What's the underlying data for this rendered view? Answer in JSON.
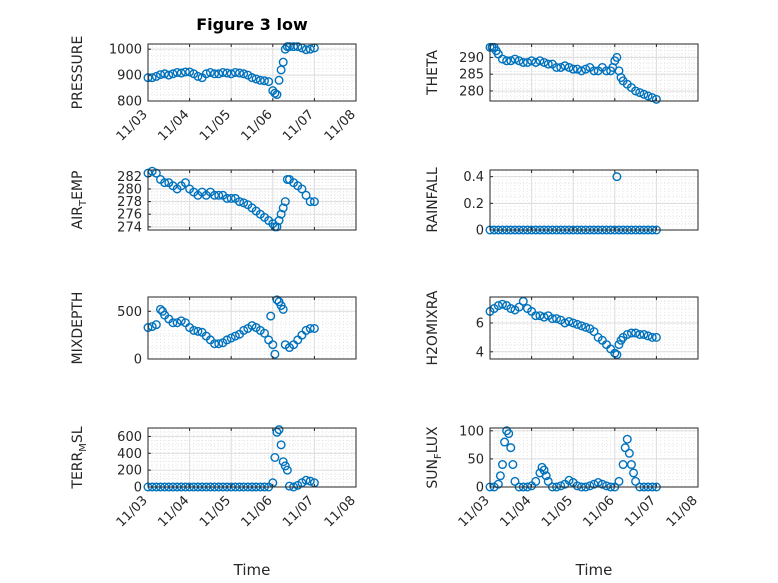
{
  "figure": {
    "title": "Figure 3 low",
    "xlabel": "Time"
  },
  "chart_data": [
    {
      "type": "scatter",
      "ylabel": "PRESSURE",
      "title": "Figure 3 low",
      "xlim": [
        0,
        5
      ],
      "ylim": [
        800,
        1020
      ],
      "yticks": [
        800,
        900,
        1000
      ],
      "xticks": [
        "11/03",
        "11/04",
        "11/05",
        "11/06",
        "11/07",
        "11/08"
      ],
      "series": [
        {
          "x": [
            0.0,
            0.1,
            0.2,
            0.3,
            0.4,
            0.5,
            0.6,
            0.7,
            0.8,
            0.9,
            1.0,
            1.1,
            1.2,
            1.3,
            1.4,
            1.5,
            1.6,
            1.7,
            1.8,
            1.9,
            2.0,
            2.1,
            2.2,
            2.3,
            2.4,
            2.5,
            2.6,
            2.7,
            2.8,
            2.9,
            3.0,
            3.05,
            3.1,
            3.15,
            3.2,
            3.25,
            3.3,
            3.35,
            3.4,
            3.5,
            3.6,
            3.7,
            3.8,
            3.9,
            4.0
          ],
          "y": [
            890,
            890,
            895,
            902,
            905,
            900,
            905,
            910,
            908,
            912,
            912,
            905,
            895,
            890,
            905,
            910,
            905,
            905,
            910,
            908,
            905,
            910,
            908,
            905,
            900,
            890,
            885,
            880,
            878,
            875,
            840,
            830,
            825,
            880,
            920,
            950,
            1000,
            1010,
            1010,
            1010,
            1010,
            1005,
            998,
            1000,
            1005
          ]
        }
      ]
    },
    {
      "type": "scatter",
      "ylabel": "THETA",
      "xlim": [
        0,
        5
      ],
      "ylim": [
        277,
        294
      ],
      "yticks": [
        280,
        285,
        290
      ],
      "series": [
        {
          "x": [
            0.0,
            0.05,
            0.1,
            0.15,
            0.2,
            0.3,
            0.4,
            0.5,
            0.6,
            0.7,
            0.8,
            0.9,
            1.0,
            1.1,
            1.2,
            1.3,
            1.4,
            1.5,
            1.6,
            1.7,
            1.8,
            1.9,
            2.0,
            2.1,
            2.2,
            2.3,
            2.4,
            2.5,
            2.6,
            2.7,
            2.8,
            2.9,
            2.95,
            3.0,
            3.05,
            3.1,
            3.15,
            3.2,
            3.3,
            3.4,
            3.5,
            3.6,
            3.7,
            3.8,
            3.9,
            4.0
          ],
          "y": [
            293,
            293,
            293,
            292,
            291,
            289.5,
            289,
            289,
            289.5,
            289,
            288.5,
            288.5,
            289,
            288.5,
            289,
            288.5,
            288,
            288,
            287,
            287,
            287.5,
            287,
            286.5,
            286.5,
            286,
            286.5,
            287,
            286,
            286,
            287,
            286,
            286,
            287,
            289,
            290,
            286,
            284,
            283,
            282,
            281,
            280,
            279.5,
            279,
            278.5,
            278,
            277.5
          ]
        }
      ]
    },
    {
      "type": "scatter",
      "ylabel": "AIR_TEMP",
      "ylabel_main": "AIR",
      "ylabel_sub": "T",
      "ylabel_rest": "EMP",
      "xlim": [
        0,
        5
      ],
      "ylim": [
        273.5,
        283
      ],
      "yticks": [
        274,
        276,
        278,
        280,
        282
      ],
      "series": [
        {
          "x": [
            0.0,
            0.1,
            0.2,
            0.3,
            0.4,
            0.5,
            0.6,
            0.7,
            0.8,
            0.9,
            1.0,
            1.1,
            1.2,
            1.3,
            1.4,
            1.5,
            1.6,
            1.7,
            1.8,
            1.9,
            2.0,
            2.1,
            2.2,
            2.3,
            2.4,
            2.5,
            2.6,
            2.7,
            2.8,
            2.9,
            3.0,
            3.05,
            3.1,
            3.15,
            3.2,
            3.25,
            3.3,
            3.35,
            3.4,
            3.5,
            3.6,
            3.7,
            3.8,
            3.9,
            4.0
          ],
          "y": [
            282.5,
            282.8,
            282.5,
            281.5,
            281,
            281,
            280.5,
            280,
            280.5,
            281,
            280,
            279.5,
            279,
            279.5,
            279,
            279.5,
            279,
            279,
            279,
            278.5,
            278.5,
            278.5,
            278,
            277.8,
            277.5,
            277,
            276.5,
            276,
            275.5,
            275,
            274.5,
            274,
            274,
            275,
            276,
            277,
            278,
            281.5,
            281.5,
            281,
            280.5,
            280,
            279,
            278,
            278
          ]
        }
      ]
    },
    {
      "type": "scatter",
      "ylabel": "RAINFALL",
      "xlim": [
        0,
        5
      ],
      "ylim": [
        0,
        0.45
      ],
      "yticks": [
        0,
        0.2,
        0.4
      ],
      "series": [
        {
          "x": [
            0.0,
            0.1,
            0.2,
            0.3,
            0.4,
            0.5,
            0.6,
            0.7,
            0.8,
            0.9,
            1.0,
            1.1,
            1.2,
            1.3,
            1.4,
            1.5,
            1.6,
            1.7,
            1.8,
            1.9,
            2.0,
            2.1,
            2.2,
            2.3,
            2.4,
            2.5,
            2.6,
            2.7,
            2.8,
            2.9,
            3.0,
            3.05,
            3.1,
            3.2,
            3.3,
            3.4,
            3.5,
            3.6,
            3.7,
            3.8,
            3.9,
            4.0
          ],
          "y": [
            0,
            0,
            0,
            0,
            0,
            0,
            0,
            0,
            0,
            0,
            0,
            0,
            0,
            0,
            0,
            0,
            0,
            0,
            0,
            0,
            0,
            0,
            0,
            0,
            0,
            0,
            0,
            0,
            0,
            0,
            0,
            0.4,
            0,
            0,
            0,
            0,
            0,
            0,
            0,
            0,
            0,
            0
          ]
        }
      ]
    },
    {
      "type": "scatter",
      "ylabel": "MIXDEPTH",
      "xlim": [
        0,
        5
      ],
      "ylim": [
        0,
        650
      ],
      "yticks": [
        0,
        500
      ],
      "series": [
        {
          "x": [
            0.0,
            0.1,
            0.2,
            0.3,
            0.35,
            0.4,
            0.5,
            0.6,
            0.7,
            0.8,
            0.9,
            1.0,
            1.1,
            1.2,
            1.3,
            1.4,
            1.5,
            1.6,
            1.7,
            1.8,
            1.9,
            2.0,
            2.1,
            2.2,
            2.3,
            2.4,
            2.5,
            2.6,
            2.7,
            2.8,
            2.9,
            2.95,
            3.0,
            3.05,
            3.1,
            3.15,
            3.2,
            3.25,
            3.3,
            3.4,
            3.5,
            3.6,
            3.7,
            3.8,
            3.9,
            4.0
          ],
          "y": [
            330,
            340,
            360,
            520,
            500,
            460,
            420,
            380,
            380,
            400,
            380,
            330,
            300,
            290,
            280,
            240,
            200,
            160,
            160,
            170,
            200,
            220,
            240,
            260,
            300,
            320,
            350,
            330,
            300,
            270,
            200,
            450,
            150,
            50,
            620,
            600,
            560,
            520,
            150,
            120,
            150,
            200,
            250,
            300,
            320,
            320
          ]
        }
      ]
    },
    {
      "type": "scatter",
      "ylabel": "H2OMIXRA",
      "xlim": [
        0,
        5
      ],
      "ylim": [
        3.5,
        7.8
      ],
      "yticks": [
        4,
        6
      ],
      "series": [
        {
          "x": [
            0.0,
            0.1,
            0.2,
            0.3,
            0.4,
            0.5,
            0.6,
            0.7,
            0.8,
            0.9,
            1.0,
            1.1,
            1.2,
            1.3,
            1.4,
            1.5,
            1.6,
            1.7,
            1.8,
            1.9,
            2.0,
            2.1,
            2.2,
            2.3,
            2.4,
            2.5,
            2.6,
            2.7,
            2.8,
            2.9,
            3.0,
            3.05,
            3.1,
            3.15,
            3.2,
            3.3,
            3.4,
            3.5,
            3.6,
            3.7,
            3.8,
            3.9,
            4.0
          ],
          "y": [
            6.8,
            7.0,
            7.2,
            7.3,
            7.2,
            7.0,
            6.9,
            7.1,
            7.5,
            7.0,
            6.8,
            6.5,
            6.5,
            6.4,
            6.5,
            6.3,
            6.3,
            6.2,
            6.0,
            6.1,
            6.0,
            5.9,
            5.8,
            5.7,
            5.6,
            5.4,
            5.0,
            4.8,
            4.5,
            4.2,
            3.9,
            3.8,
            4.5,
            4.8,
            5.0,
            5.2,
            5.3,
            5.3,
            5.2,
            5.2,
            5.1,
            5.0,
            5.0
          ]
        }
      ]
    },
    {
      "type": "scatter",
      "ylabel": "TERR_MSL",
      "ylabel_main": "TERR",
      "ylabel_sub": "M",
      "ylabel_rest": "SL",
      "xlim": [
        0,
        5
      ],
      "ylim": [
        0,
        700
      ],
      "yticks": [
        0,
        200,
        400,
        600
      ],
      "xticks": [
        "11/03",
        "11/04",
        "11/05",
        "11/06",
        "11/07",
        "11/08"
      ],
      "series": [
        {
          "x": [
            0.0,
            0.1,
            0.2,
            0.3,
            0.4,
            0.5,
            0.6,
            0.7,
            0.8,
            0.9,
            1.0,
            1.1,
            1.2,
            1.3,
            1.4,
            1.5,
            1.6,
            1.7,
            1.8,
            1.9,
            2.0,
            2.1,
            2.2,
            2.3,
            2.4,
            2.5,
            2.6,
            2.7,
            2.8,
            2.9,
            3.0,
            3.05,
            3.1,
            3.15,
            3.2,
            3.25,
            3.3,
            3.35,
            3.4,
            3.5,
            3.6,
            3.7,
            3.8,
            3.9,
            4.0
          ],
          "y": [
            0,
            0,
            0,
            0,
            0,
            0,
            0,
            0,
            0,
            0,
            0,
            0,
            0,
            0,
            0,
            0,
            0,
            0,
            0,
            0,
            0,
            0,
            0,
            0,
            0,
            0,
            0,
            0,
            0,
            0,
            50,
            350,
            650,
            680,
            500,
            300,
            250,
            200,
            10,
            0,
            20,
            50,
            80,
            70,
            50
          ]
        }
      ]
    },
    {
      "type": "scatter",
      "ylabel": "SUN_FLUX",
      "ylabel_main": "SUN",
      "ylabel_sub": "F",
      "ylabel_rest": "LUX",
      "xlim": [
        0,
        5
      ],
      "ylim": [
        0,
        105
      ],
      "yticks": [
        0,
        50,
        100
      ],
      "xticks": [
        "11/03",
        "11/04",
        "11/05",
        "11/06",
        "11/07",
        "11/08"
      ],
      "series": [
        {
          "x": [
            0.0,
            0.1,
            0.2,
            0.25,
            0.3,
            0.35,
            0.4,
            0.45,
            0.5,
            0.55,
            0.6,
            0.7,
            0.8,
            0.9,
            1.0,
            1.1,
            1.2,
            1.25,
            1.3,
            1.35,
            1.4,
            1.5,
            1.6,
            1.7,
            1.8,
            1.9,
            2.0,
            2.1,
            2.2,
            2.3,
            2.4,
            2.5,
            2.6,
            2.7,
            2.8,
            2.9,
            3.0,
            3.1,
            3.2,
            3.25,
            3.3,
            3.35,
            3.4,
            3.45,
            3.5,
            3.6,
            3.7,
            3.8,
            3.9,
            4.0
          ],
          "y": [
            0,
            0,
            5,
            20,
            40,
            80,
            100,
            95,
            70,
            40,
            10,
            0,
            0,
            0,
            2,
            10,
            25,
            35,
            30,
            20,
            10,
            0,
            0,
            2,
            5,
            12,
            8,
            2,
            0,
            0,
            2,
            5,
            8,
            5,
            2,
            0,
            0,
            10,
            40,
            70,
            85,
            60,
            40,
            25,
            10,
            0,
            0,
            0,
            0,
            0
          ]
        }
      ]
    }
  ]
}
